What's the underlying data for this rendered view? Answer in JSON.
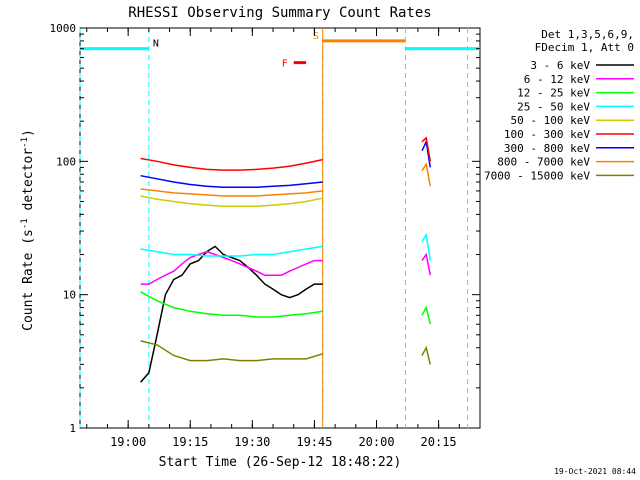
{
  "chart_data": {
    "type": "line",
    "title": "RHESSI Observing Summary Count Rates",
    "xlabel": "Start Time (26-Sep-12 18:48:22)",
    "ylabel_main": "Count Rate (s",
    "ylabel_sup1": "-1",
    "ylabel_mid": " detector",
    "ylabel_sup2": "-1",
    "ylabel_end": ")",
    "y_scale": "log",
    "ylim": [
      1,
      1000
    ],
    "xlim": [
      "18:48:22",
      "20:25:00"
    ],
    "y_ticks": [
      "1",
      "10",
      "100",
      "1000"
    ],
    "x_ticks": [
      "19:00",
      "19:15",
      "19:30",
      "19:45",
      "20:00",
      "20:15"
    ],
    "legend_header": [
      "Det 1,3,5,6,9,",
      "FDecim 1, Att 0"
    ],
    "legend_placement": "right",
    "timestamp": "19-Oct-2021 08:44",
    "series": [
      {
        "name": "3 - 6 keV",
        "color": "#000000",
        "points": [
          [
            "19:03",
            2.2
          ],
          [
            "19:05",
            2.6
          ],
          [
            "19:07",
            5
          ],
          [
            "19:09",
            10
          ],
          [
            "19:11",
            13
          ],
          [
            "19:13",
            14
          ],
          [
            "19:15",
            17
          ],
          [
            "19:17",
            18
          ],
          [
            "19:19",
            21
          ],
          [
            "19:21",
            23
          ],
          [
            "19:23",
            20
          ],
          [
            "19:25",
            19
          ],
          [
            "19:27",
            18
          ],
          [
            "19:29",
            16
          ],
          [
            "19:31",
            14
          ],
          [
            "19:33",
            12
          ],
          [
            "19:35",
            11
          ],
          [
            "19:37",
            10
          ],
          [
            "19:39",
            9.5
          ],
          [
            "19:41",
            10
          ],
          [
            "19:43",
            11
          ],
          [
            "19:45",
            12
          ],
          [
            "19:47",
            12
          ]
        ]
      },
      {
        "name": "6 - 12 keV",
        "color": "#ff00ff",
        "points": [
          [
            "19:03",
            12
          ],
          [
            "19:05",
            12
          ],
          [
            "19:07",
            13
          ],
          [
            "19:09",
            14
          ],
          [
            "19:11",
            15
          ],
          [
            "19:13",
            17
          ],
          [
            "19:15",
            19
          ],
          [
            "19:17",
            20
          ],
          [
            "19:19",
            21
          ],
          [
            "19:21",
            20
          ],
          [
            "19:23",
            19
          ],
          [
            "19:25",
            18
          ],
          [
            "19:27",
            17
          ],
          [
            "19:29",
            16
          ],
          [
            "19:31",
            15
          ],
          [
            "19:33",
            14
          ],
          [
            "19:35",
            14
          ],
          [
            "19:37",
            14
          ],
          [
            "19:39",
            15
          ],
          [
            "19:41",
            16
          ],
          [
            "19:43",
            17
          ],
          [
            "19:45",
            18
          ],
          [
            "19:47",
            18
          ]
        ]
      },
      {
        "name": "12 - 25 keV",
        "color": "#00ff00",
        "points": [
          [
            "19:03",
            10.5
          ],
          [
            "19:07",
            9
          ],
          [
            "19:11",
            8
          ],
          [
            "19:15",
            7.5
          ],
          [
            "19:19",
            7.2
          ],
          [
            "19:23",
            7
          ],
          [
            "19:27",
            7
          ],
          [
            "19:31",
            6.8
          ],
          [
            "19:35",
            6.8
          ],
          [
            "19:39",
            7
          ],
          [
            "19:43",
            7.2
          ],
          [
            "19:47",
            7.5
          ]
        ]
      },
      {
        "name": "25 - 50 keV",
        "color": "#00ffff",
        "points": [
          [
            "19:03",
            22
          ],
          [
            "19:07",
            21
          ],
          [
            "19:11",
            20
          ],
          [
            "19:15",
            20
          ],
          [
            "19:19",
            19.5
          ],
          [
            "19:23",
            19.5
          ],
          [
            "19:27",
            19.5
          ],
          [
            "19:31",
            20
          ],
          [
            "19:35",
            20
          ],
          [
            "19:39",
            21
          ],
          [
            "19:43",
            22
          ],
          [
            "19:47",
            23
          ]
        ]
      },
      {
        "name": "50 - 100 keV",
        "color": "#cccc00",
        "points": [
          [
            "19:03",
            55
          ],
          [
            "19:07",
            52
          ],
          [
            "19:11",
            50
          ],
          [
            "19:15",
            48
          ],
          [
            "19:19",
            47
          ],
          [
            "19:23",
            46
          ],
          [
            "19:27",
            46
          ],
          [
            "19:31",
            46
          ],
          [
            "19:35",
            47
          ],
          [
            "19:39",
            48
          ],
          [
            "19:43",
            50
          ],
          [
            "19:47",
            53
          ]
        ]
      },
      {
        "name": "100 - 300 keV",
        "color": "#ff0000",
        "points": [
          [
            "19:03",
            105
          ],
          [
            "19:07",
            100
          ],
          [
            "19:11",
            94
          ],
          [
            "19:15",
            90
          ],
          [
            "19:19",
            87
          ],
          [
            "19:23",
            86
          ],
          [
            "19:27",
            86
          ],
          [
            "19:31",
            87
          ],
          [
            "19:35",
            89
          ],
          [
            "19:39",
            92
          ],
          [
            "19:43",
            97
          ],
          [
            "19:47",
            103
          ]
        ]
      },
      {
        "name": "300 - 800 keV",
        "color": "#0000ff",
        "points": [
          [
            "19:03",
            78
          ],
          [
            "19:07",
            74
          ],
          [
            "19:11",
            70
          ],
          [
            "19:15",
            67
          ],
          [
            "19:19",
            65
          ],
          [
            "19:23",
            64
          ],
          [
            "19:27",
            64
          ],
          [
            "19:31",
            64
          ],
          [
            "19:35",
            65
          ],
          [
            "19:39",
            66
          ],
          [
            "19:43",
            68
          ],
          [
            "19:47",
            70
          ]
        ]
      },
      {
        "name": "800 - 7000 keV",
        "color": "#ff8000",
        "points": [
          [
            "19:03",
            62
          ],
          [
            "19:07",
            60
          ],
          [
            "19:11",
            58
          ],
          [
            "19:15",
            57
          ],
          [
            "19:19",
            56
          ],
          [
            "19:23",
            55
          ],
          [
            "19:27",
            55
          ],
          [
            "19:31",
            55
          ],
          [
            "19:35",
            56
          ],
          [
            "19:39",
            57
          ],
          [
            "19:43",
            58
          ],
          [
            "19:47",
            60
          ]
        ]
      },
      {
        "name": "7000 - 15000 keV",
        "color": "#808000",
        "points": [
          [
            "19:03",
            4.5
          ],
          [
            "19:07",
            4.2
          ],
          [
            "19:11",
            3.5
          ],
          [
            "19:15",
            3.2
          ],
          [
            "19:19",
            3.2
          ],
          [
            "19:23",
            3.3
          ],
          [
            "19:27",
            3.2
          ],
          [
            "19:31",
            3.2
          ],
          [
            "19:35",
            3.3
          ],
          [
            "19:39",
            3.3
          ],
          [
            "19:43",
            3.3
          ],
          [
            "19:47",
            3.6
          ]
        ]
      }
    ],
    "late_spike": [
      {
        "color": "#0000ff",
        "points": [
          [
            "20:11",
            120
          ],
          [
            "20:12",
            140
          ],
          [
            "20:13",
            90
          ]
        ]
      },
      {
        "color": "#ff0000",
        "points": [
          [
            "20:11",
            140
          ],
          [
            "20:12",
            150
          ],
          [
            "20:13",
            100
          ]
        ]
      },
      {
        "color": "#ff8000",
        "points": [
          [
            "20:11",
            85
          ],
          [
            "20:12",
            95
          ],
          [
            "20:13",
            65
          ]
        ]
      },
      {
        "color": "#00ffff",
        "points": [
          [
            "20:11",
            25
          ],
          [
            "20:12",
            28
          ],
          [
            "20:13",
            18
          ]
        ]
      },
      {
        "color": "#ff00ff",
        "points": [
          [
            "20:11",
            18
          ],
          [
            "20:12",
            20
          ],
          [
            "20:13",
            14
          ]
        ]
      },
      {
        "color": "#00ff00",
        "points": [
          [
            "20:11",
            7
          ],
          [
            "20:12",
            8
          ],
          [
            "20:13",
            6
          ]
        ]
      },
      {
        "color": "#808000",
        "points": [
          [
            "20:11",
            3.5
          ],
          [
            "20:12",
            4
          ],
          [
            "20:13",
            3
          ]
        ]
      }
    ],
    "flags": {
      "N_label": "N",
      "S_label": "S",
      "F_label": "F",
      "night_color": "#00ffff",
      "saa_color": "#ff8000",
      "flare_color": "#ff0000",
      "night_level": 700,
      "saa_level": 800,
      "flare_level": 550,
      "night_intervals": [
        [
          "18:48:22",
          "19:05"
        ],
        [
          "20:07",
          "20:25"
        ]
      ],
      "saa_interval": [
        "19:47",
        "20:07"
      ],
      "flare_interval": [
        "19:40",
        "19:43"
      ],
      "dashed_lines": [
        "18:48:22",
        "19:05",
        "19:47",
        "20:07",
        "20:22"
      ]
    }
  }
}
